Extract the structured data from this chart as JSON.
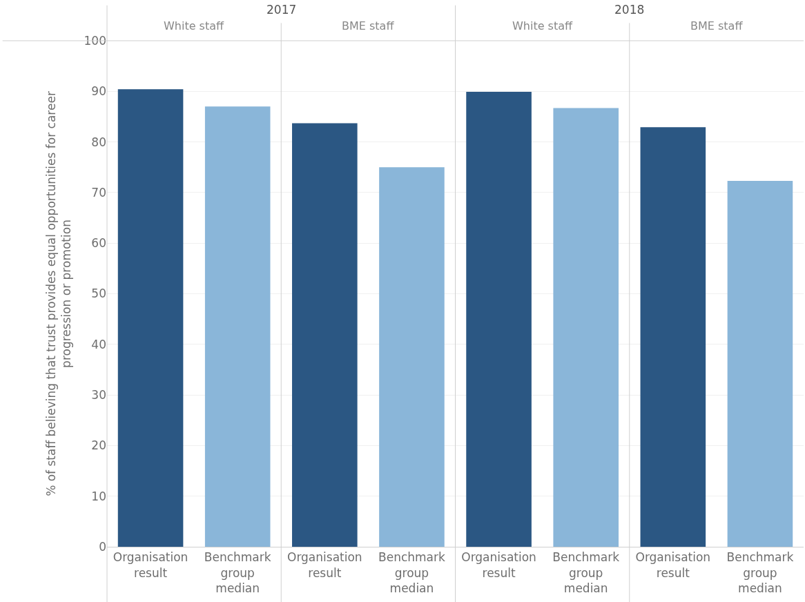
{
  "chart_data": {
    "type": "bar",
    "ylabel": "% of staff believing that trust provides equal opportunities for career progression or promotion",
    "categories": [
      "Organisation result",
      "Benchmark group median",
      "Organisation result",
      "Benchmark group median",
      "Organisation result",
      "Benchmark group median",
      "Organisation result",
      "Benchmark group median"
    ],
    "values": [
      90.4,
      87.0,
      83.7,
      75.0,
      89.9,
      86.7,
      82.9,
      72.3
    ],
    "colors": [
      "#2b5783",
      "#8ab6d9",
      "#2b5783",
      "#8ab6d9",
      "#2b5783",
      "#8ab6d9",
      "#2b5783",
      "#8ab6d9"
    ],
    "annotations": [
      "2017",
      "2018",
      "White staff",
      "BME staff",
      "White staff",
      "BME staff"
    ],
    "ylim": [
      0,
      100
    ],
    "yticks": [
      0,
      10,
      20,
      30,
      40,
      50,
      60,
      70,
      80,
      90,
      100
    ],
    "grid": "y"
  }
}
